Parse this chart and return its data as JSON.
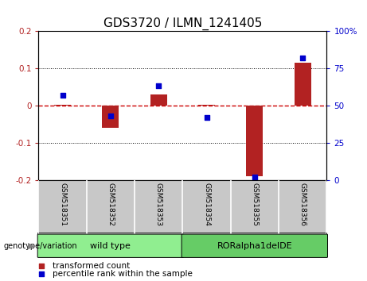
{
  "title": "GDS3720 / ILMN_1241405",
  "samples": [
    "GSM518351",
    "GSM518352",
    "GSM518353",
    "GSM518354",
    "GSM518355",
    "GSM518356"
  ],
  "red_values": [
    0.001,
    -0.06,
    0.03,
    0.001,
    -0.19,
    0.115
  ],
  "blue_values": [
    57,
    43,
    63,
    42,
    2,
    82
  ],
  "ylim_left": [
    -0.2,
    0.2
  ],
  "ylim_right": [
    0,
    100
  ],
  "yticks_left": [
    -0.2,
    -0.1,
    0.0,
    0.1,
    0.2
  ],
  "yticks_right": [
    0,
    25,
    50,
    75,
    100
  ],
  "bar_color": "#B22222",
  "dot_color": "#0000CC",
  "zero_line_color": "#CC0000",
  "dotted_line_color": "#000000",
  "groups": [
    {
      "label": "wild type",
      "samples_idx": [
        0,
        1,
        2
      ],
      "color": "#90EE90"
    },
    {
      "label": "RORalpha1delDE",
      "samples_idx": [
        3,
        4,
        5
      ],
      "color": "#66CC66"
    }
  ],
  "group_label": "genotype/variation",
  "legend_red": "transformed count",
  "legend_blue": "percentile rank within the sample",
  "background_xtick": "#C8C8C8",
  "title_fontsize": 11,
  "tick_fontsize": 7.5,
  "label_fontsize": 7,
  "bar_width": 0.35
}
